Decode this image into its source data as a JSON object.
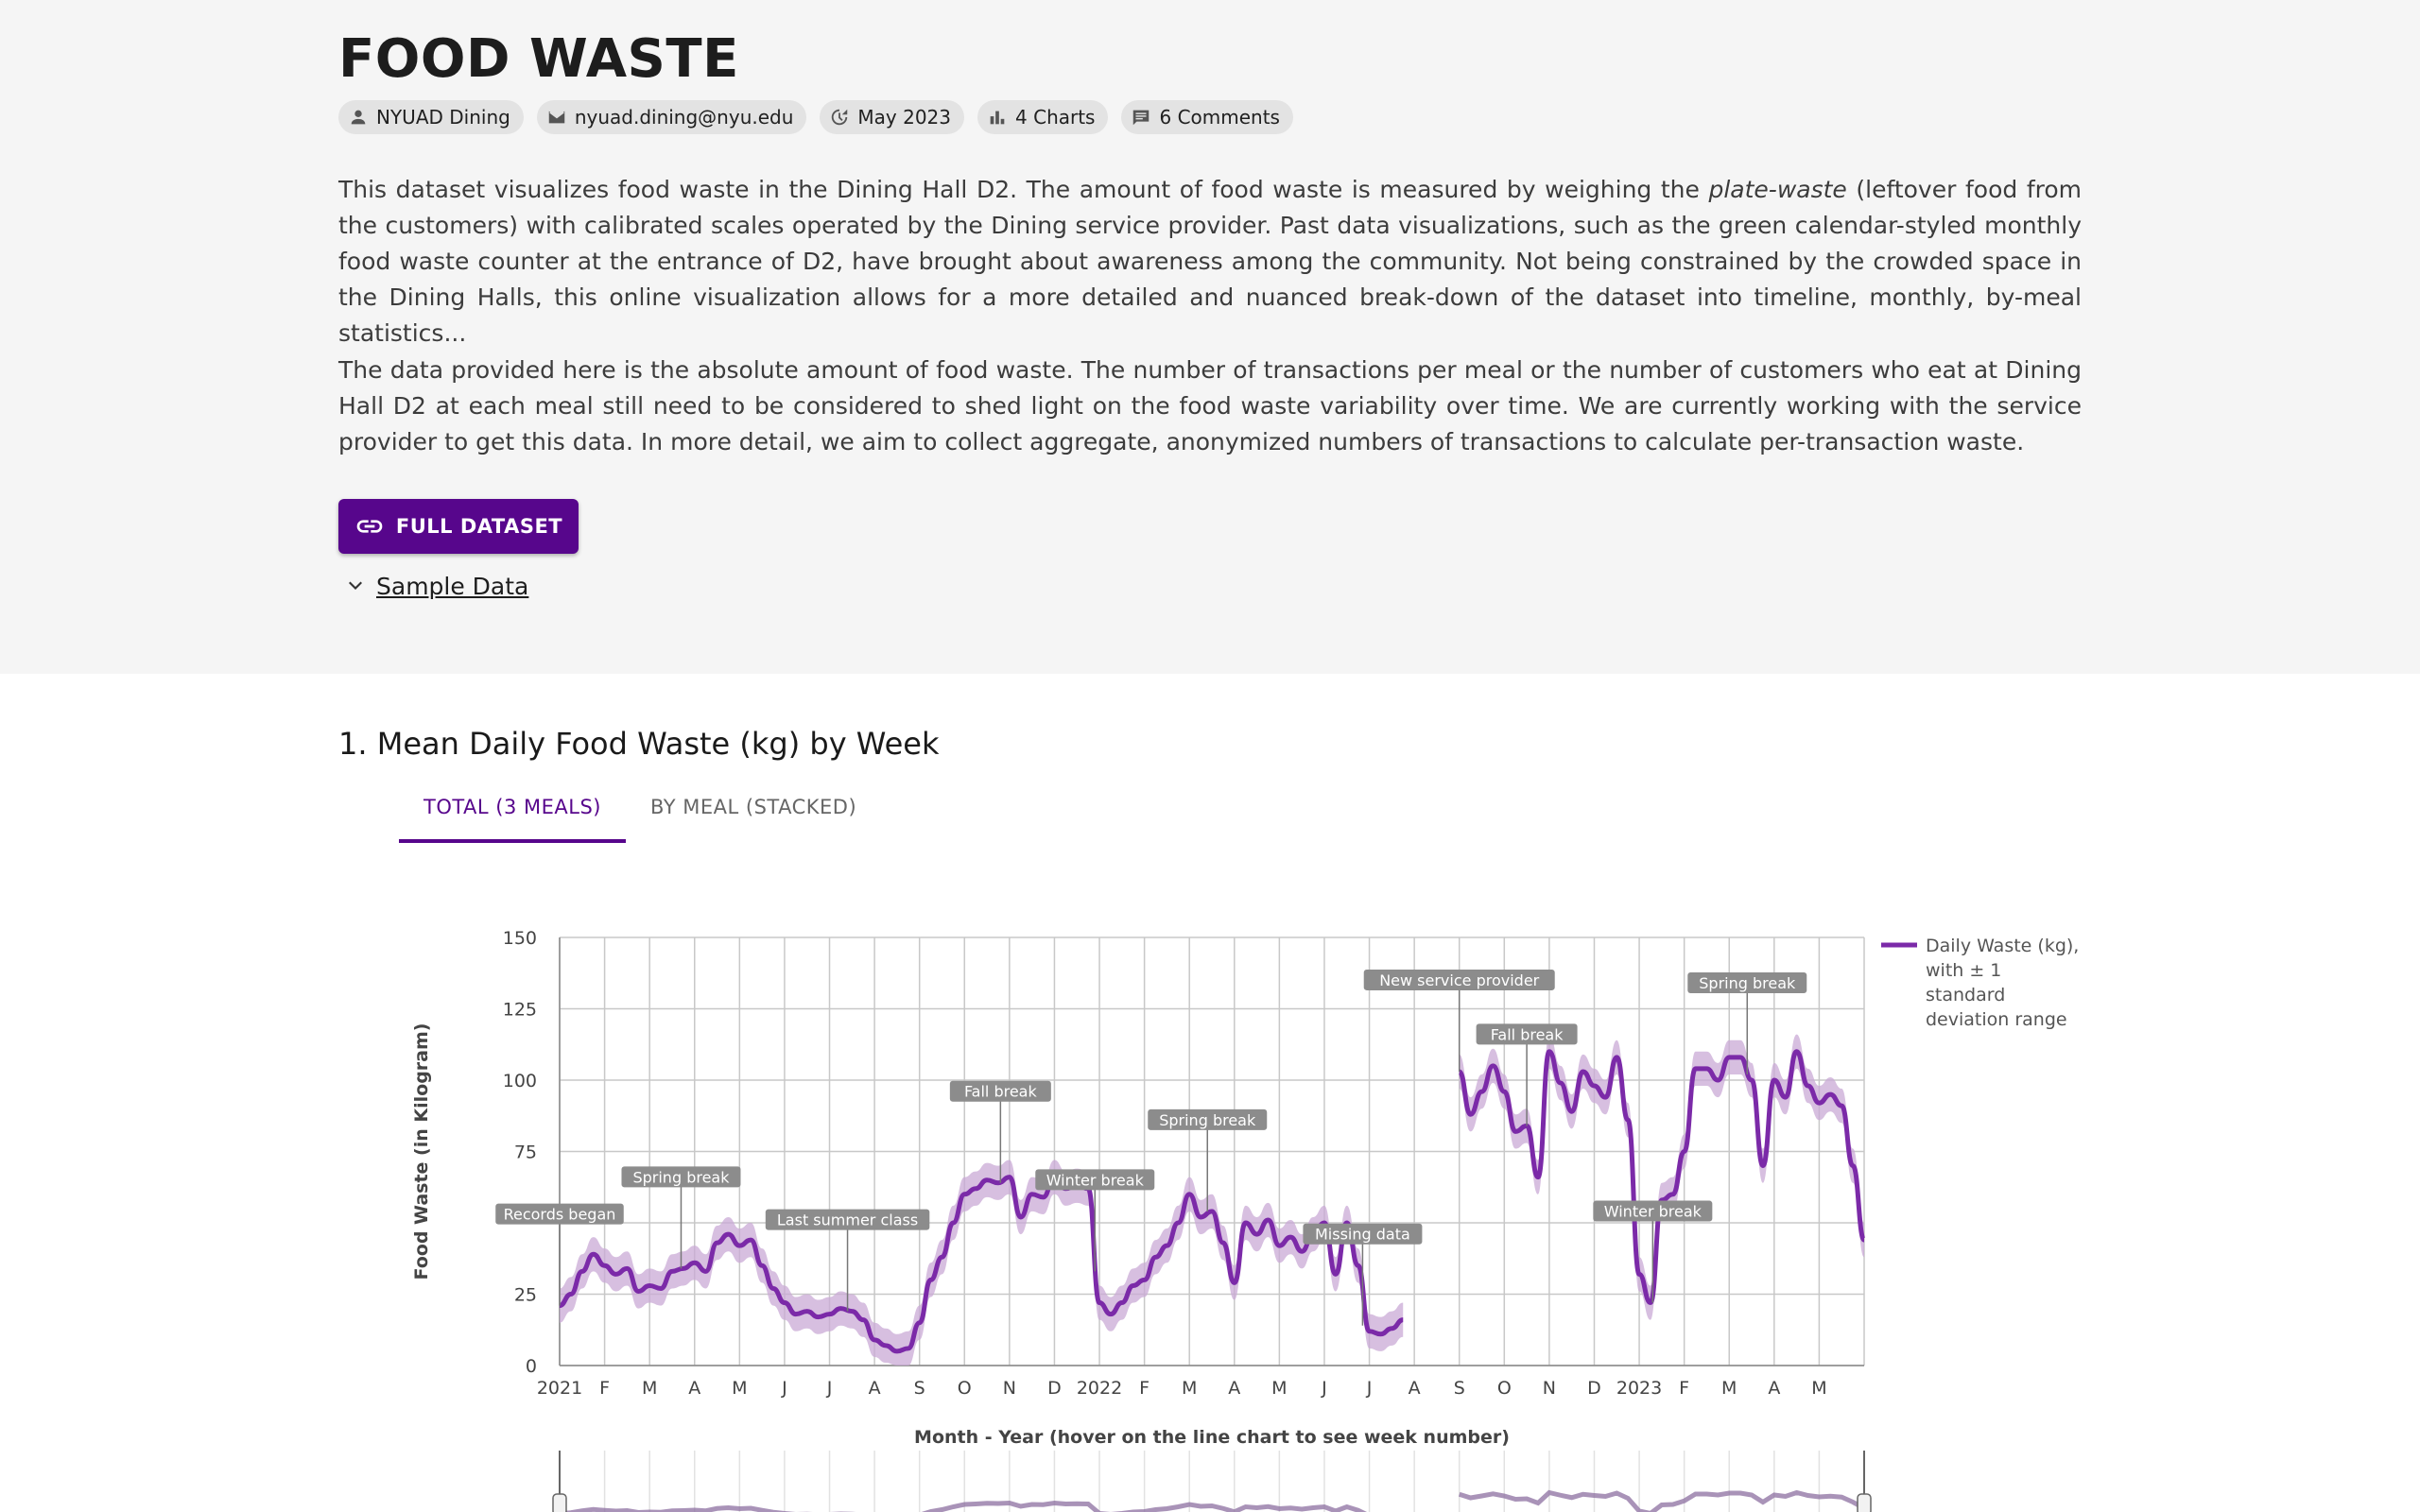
{
  "header": {
    "title": "FOOD WASTE",
    "chips": [
      {
        "icon": "person-icon",
        "label": "NYUAD Dining"
      },
      {
        "icon": "email-icon",
        "label": "nyuad.dining@nyu.edu"
      },
      {
        "icon": "update-icon",
        "label": "May 2023"
      },
      {
        "icon": "bar-chart-icon",
        "label": "4 Charts"
      },
      {
        "icon": "comment-icon",
        "label": "6 Comments"
      }
    ]
  },
  "description": {
    "p1_before": "This dataset visualizes food waste in the Dining Hall D2. The amount of food waste is measured by weighing the ",
    "p1_emphasis": "plate-waste",
    "p1_after": " (leftover food from the customers) with calibrated scales operated by the Dining service provider. Past data visualizations, such as the green calendar-styled monthly food waste counter at the entrance of D2, have brought about awareness among the community. Not being constrained by the crowded space in the Dining Halls, this online visualization allows for a more detailed and nuanced break-down of the dataset into timeline, monthly, by-meal statistics...",
    "p2": "The data provided here is the absolute amount of food waste. The number of transactions per meal or the number of customers who eat at Dining Hall D2 at each meal still need to be considered to shed light on the food waste variability over time. We are currently working with the service provider to get this data. In more detail, we aim to collect aggregate, anonymized numbers of transactions to calculate per-transaction waste."
  },
  "actions": {
    "full_dataset": "FULL DATASET",
    "sample_data": "Sample Data"
  },
  "section": {
    "title": "1. Mean Daily Food Waste (kg) by Week",
    "tabs": [
      {
        "label": "TOTAL (3 MEALS)",
        "active": true
      },
      {
        "label": "BY MEAL (STACKED)",
        "active": false
      }
    ]
  },
  "colors": {
    "accent": "#57068c",
    "line": "#7b2aa8",
    "band": "#c9a9d6",
    "annotation": "#8c8c8c"
  },
  "chart_data": {
    "type": "line",
    "ylabel": "Food Waste (in Kilogram)",
    "xlabel": "Month - Year (hover on the line chart to see week number)",
    "ylim": [
      0,
      150
    ],
    "yticks": [
      0,
      25,
      50,
      75,
      100,
      125,
      150
    ],
    "ytick_labels": [
      "0",
      "25",
      "",
      "75",
      "100",
      "125",
      "150"
    ],
    "xlim": [
      0,
      29
    ],
    "xticks": [
      {
        "x": 0,
        "label": "2021"
      },
      {
        "x": 1,
        "label": "F"
      },
      {
        "x": 2,
        "label": "M"
      },
      {
        "x": 3,
        "label": "A"
      },
      {
        "x": 4,
        "label": "M"
      },
      {
        "x": 5,
        "label": "J"
      },
      {
        "x": 6,
        "label": "J"
      },
      {
        "x": 7,
        "label": "A"
      },
      {
        "x": 8,
        "label": "S"
      },
      {
        "x": 9,
        "label": "O"
      },
      {
        "x": 10,
        "label": "N"
      },
      {
        "x": 11,
        "label": "D"
      },
      {
        "x": 12,
        "label": "2022"
      },
      {
        "x": 13,
        "label": "F"
      },
      {
        "x": 14,
        "label": "M"
      },
      {
        "x": 15,
        "label": "A"
      },
      {
        "x": 16,
        "label": "M"
      },
      {
        "x": 17,
        "label": "J"
      },
      {
        "x": 18,
        "label": "J"
      },
      {
        "x": 19,
        "label": "A"
      },
      {
        "x": 20,
        "label": "S"
      },
      {
        "x": 21,
        "label": "O"
      },
      {
        "x": 22,
        "label": "N"
      },
      {
        "x": 23,
        "label": "D"
      },
      {
        "x": 24,
        "label": "2023"
      },
      {
        "x": 25,
        "label": "F"
      },
      {
        "x": 26,
        "label": "M"
      },
      {
        "x": 27,
        "label": "A"
      },
      {
        "x": 28,
        "label": "M"
      }
    ],
    "legend": "Daily Waste (kg), with ± 1 standard deviation range",
    "legend_position": "right",
    "grid": true,
    "series": [
      {
        "points": [
          [
            0.0,
            21
          ],
          [
            0.25,
            25
          ],
          [
            0.5,
            33
          ],
          [
            0.75,
            39
          ],
          [
            1.0,
            35
          ],
          [
            1.25,
            32
          ],
          [
            1.5,
            34
          ],
          [
            1.75,
            26
          ],
          [
            2.0,
            28
          ],
          [
            2.25,
            27
          ],
          [
            2.5,
            33
          ],
          [
            2.75,
            34
          ],
          [
            3.0,
            36
          ],
          [
            3.25,
            33
          ],
          [
            3.5,
            43
          ],
          [
            3.75,
            46
          ],
          [
            4.0,
            42
          ],
          [
            4.25,
            44
          ],
          [
            4.5,
            35
          ],
          [
            4.75,
            27
          ],
          [
            5.0,
            22
          ],
          [
            5.25,
            18
          ],
          [
            5.5,
            19
          ],
          [
            5.75,
            17
          ],
          [
            6.0,
            18
          ],
          [
            6.25,
            20
          ],
          [
            6.5,
            19
          ],
          [
            6.75,
            16
          ],
          [
            7.0,
            9
          ],
          [
            7.25,
            7
          ],
          [
            7.5,
            5
          ],
          [
            7.75,
            6
          ],
          [
            8.0,
            15
          ],
          [
            8.25,
            30
          ],
          [
            8.5,
            38
          ],
          [
            8.75,
            50
          ],
          [
            9.0,
            60
          ],
          [
            9.25,
            62
          ],
          [
            9.5,
            65
          ],
          [
            9.75,
            64
          ],
          [
            10.0,
            66
          ],
          [
            10.25,
            52
          ],
          [
            10.5,
            60
          ],
          [
            10.75,
            59
          ],
          [
            11.0,
            66
          ],
          [
            11.25,
            62
          ],
          [
            11.5,
            63
          ],
          [
            11.75,
            62
          ],
          [
            12.0,
            22
          ],
          [
            12.25,
            18
          ],
          [
            12.5,
            22
          ],
          [
            12.75,
            28
          ],
          [
            13.0,
            30
          ],
          [
            13.25,
            38
          ],
          [
            13.5,
            42
          ],
          [
            13.75,
            50
          ],
          [
            14.0,
            60
          ],
          [
            14.25,
            52
          ],
          [
            14.5,
            54
          ],
          [
            14.75,
            43
          ],
          [
            15.0,
            29
          ],
          [
            15.25,
            50
          ],
          [
            15.5,
            46
          ],
          [
            15.75,
            51
          ],
          [
            16.0,
            42
          ],
          [
            16.25,
            45
          ],
          [
            16.5,
            40
          ],
          [
            16.75,
            46
          ],
          [
            17.0,
            50
          ],
          [
            17.25,
            32
          ],
          [
            17.5,
            50
          ],
          [
            17.75,
            35
          ],
          [
            18.0,
            12
          ],
          [
            18.25,
            11
          ],
          [
            18.5,
            13
          ],
          [
            18.75,
            16
          ],
          [
            19.0,
            null
          ],
          [
            20.0,
            103
          ],
          [
            20.25,
            88
          ],
          [
            20.5,
            96
          ],
          [
            20.75,
            105
          ],
          [
            21.0,
            96
          ],
          [
            21.25,
            82
          ],
          [
            21.5,
            84
          ],
          [
            21.75,
            66
          ],
          [
            22.0,
            110
          ],
          [
            22.25,
            99
          ],
          [
            22.5,
            89
          ],
          [
            22.75,
            103
          ],
          [
            23.0,
            98
          ],
          [
            23.25,
            94
          ],
          [
            23.5,
            108
          ],
          [
            23.75,
            86
          ],
          [
            24.0,
            32
          ],
          [
            24.25,
            22
          ],
          [
            24.5,
            58
          ],
          [
            24.75,
            60
          ],
          [
            25.0,
            75
          ],
          [
            25.25,
            104
          ],
          [
            25.5,
            104
          ],
          [
            25.75,
            100
          ],
          [
            26.0,
            108
          ],
          [
            26.25,
            108
          ],
          [
            26.5,
            100
          ],
          [
            26.75,
            70
          ],
          [
            27.0,
            100
          ],
          [
            27.25,
            94
          ],
          [
            27.5,
            110
          ],
          [
            27.75,
            98
          ],
          [
            28.0,
            92
          ],
          [
            28.25,
            95
          ],
          [
            28.5,
            91
          ],
          [
            28.75,
            70
          ],
          [
            29.0,
            44
          ]
        ],
        "std": 6
      }
    ],
    "annotations": [
      {
        "x": 0.0,
        "y": 21,
        "label": "Records began"
      },
      {
        "x": 2.7,
        "y": 34,
        "label": "Spring break"
      },
      {
        "x": 6.4,
        "y": 19,
        "label": "Last summer class"
      },
      {
        "x": 9.8,
        "y": 64,
        "label": "Fall break"
      },
      {
        "x": 11.9,
        "y": 33,
        "label": "Winter break"
      },
      {
        "x": 14.4,
        "y": 54,
        "label": "Spring break"
      },
      {
        "x": 17.85,
        "y": 14,
        "label": "Missing data"
      },
      {
        "x": 20.0,
        "y": 103,
        "label": "New service provider"
      },
      {
        "x": 21.5,
        "y": 84,
        "label": "Fall break"
      },
      {
        "x": 24.3,
        "y": 22,
        "label": "Winter break"
      },
      {
        "x": 26.4,
        "y": 102,
        "label": "Spring break"
      }
    ]
  }
}
